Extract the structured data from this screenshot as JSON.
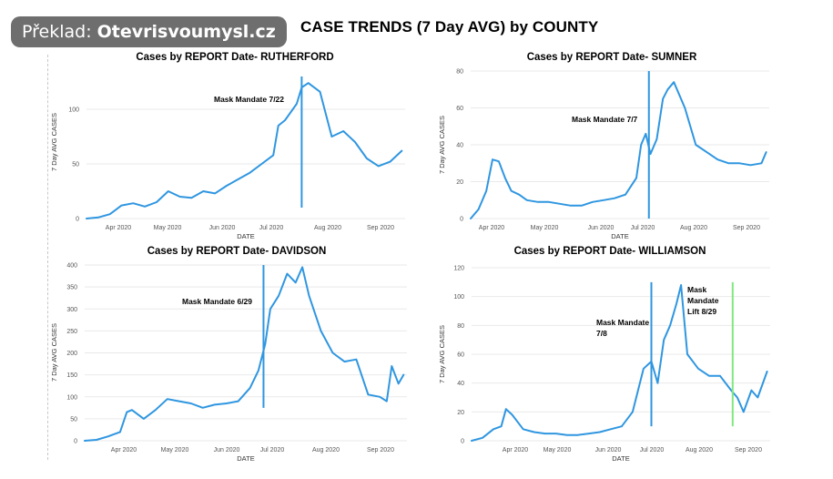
{
  "badge": {
    "prefix": "Překlad:",
    "site": "Otevrisvoumysl.cz"
  },
  "title": "CASE TRENDS (7 Day AVG) by COUNTY",
  "colors": {
    "line": "#2f96e0",
    "green": "#7fe87f"
  },
  "chart_data": [
    {
      "type": "line",
      "title": "Cases by REPORT Date- RUTHERFORD",
      "xlabel": "DATE",
      "ylabel": "7 Day AVG CASES",
      "ylim": [
        0,
        140
      ],
      "yticks": [
        0,
        50,
        100
      ],
      "xticks": [
        "Apr 2020",
        "May 2020",
        "Jun 2020",
        "Jul 2020",
        "Aug 2020",
        "Sep 2020"
      ],
      "xrange": [
        "2020-03-15",
        "2020-09-22"
      ],
      "annotations": [
        {
          "label_lines": [
            "Mask Mandate 7/22"
          ],
          "date": "2020-07-22",
          "line_ylim": [
            10,
            130
          ],
          "color": "#2f96e0"
        }
      ],
      "series": [
        {
          "x": [
            "2020-03-15",
            "2020-03-22",
            "2020-03-29",
            "2020-04-05",
            "2020-04-12",
            "2020-04-19",
            "2020-04-26",
            "2020-05-03",
            "2020-05-10",
            "2020-05-17",
            "2020-05-24",
            "2020-05-31",
            "2020-06-07",
            "2020-06-14",
            "2020-06-21",
            "2020-06-28",
            "2020-07-05",
            "2020-07-08",
            "2020-07-12",
            "2020-07-19",
            "2020-07-22",
            "2020-07-26",
            "2020-08-02",
            "2020-08-09",
            "2020-08-16",
            "2020-08-23",
            "2020-08-30",
            "2020-09-06",
            "2020-09-13",
            "2020-09-20"
          ],
          "values": [
            0,
            1,
            4,
            12,
            14,
            11,
            15,
            25,
            20,
            19,
            25,
            23,
            30,
            36,
            42,
            50,
            58,
            85,
            90,
            105,
            120,
            124,
            116,
            75,
            80,
            70,
            55,
            48,
            52,
            62
          ]
        }
      ]
    },
    {
      "type": "line",
      "title": "Cases by REPORT Date- SUMNER",
      "xlabel": "DATE",
      "ylabel": "7 Day AVG CASES",
      "ylim": [
        0,
        80
      ],
      "yticks": [
        0,
        20,
        40,
        60,
        80
      ],
      "xticks": [
        "Apr 2020",
        "May 2020",
        "Jun 2020",
        "Jul 2020",
        "Aug 2020",
        "Sep 2020"
      ],
      "xrange": [
        "2020-03-15",
        "2020-09-22"
      ],
      "annotations": [
        {
          "label_lines": [
            "Mask Mandate 7/7"
          ],
          "date": "2020-07-07",
          "line_ylim": [
            0,
            80
          ],
          "color": "#2f96e0"
        }
      ],
      "series": [
        {
          "x": [
            "2020-03-15",
            "2020-03-20",
            "2020-03-25",
            "2020-03-29",
            "2020-04-02",
            "2020-04-06",
            "2020-04-10",
            "2020-04-15",
            "2020-04-20",
            "2020-04-27",
            "2020-05-04",
            "2020-05-11",
            "2020-05-18",
            "2020-05-25",
            "2020-06-01",
            "2020-06-08",
            "2020-06-15",
            "2020-06-22",
            "2020-06-29",
            "2020-07-02",
            "2020-07-05",
            "2020-07-08",
            "2020-07-12",
            "2020-07-16",
            "2020-07-19",
            "2020-07-23",
            "2020-07-30",
            "2020-08-06",
            "2020-08-13",
            "2020-08-20",
            "2020-08-27",
            "2020-09-03",
            "2020-09-10",
            "2020-09-17",
            "2020-09-20"
          ],
          "values": [
            0,
            5,
            15,
            32,
            31,
            22,
            15,
            13,
            10,
            9,
            9,
            8,
            7,
            7,
            9,
            10,
            11,
            13,
            22,
            40,
            46,
            35,
            43,
            65,
            70,
            74,
            60,
            40,
            36,
            32,
            30,
            30,
            29,
            30,
            36
          ]
        }
      ]
    },
    {
      "type": "line",
      "title": "Cases by REPORT Date- DAVIDSON",
      "xlabel": "DATE",
      "ylabel": "7 Day AVG CASES",
      "ylim": [
        0,
        400
      ],
      "yticks": [
        0,
        50,
        100,
        150,
        200,
        250,
        300,
        350,
        400
      ],
      "xticks": [
        "Apr 2020",
        "May 2020",
        "Jun 2020",
        "Jul 2020",
        "Aug 2020",
        "Sep 2020"
      ],
      "xrange": [
        "2020-03-15",
        "2020-09-22"
      ],
      "annotations": [
        {
          "label_lines": [
            "Mask Mandate 6/29"
          ],
          "date": "2020-06-29",
          "line_ylim": [
            75,
            400
          ],
          "color": "#2f96e0"
        }
      ],
      "series": [
        {
          "x": [
            "2020-03-15",
            "2020-03-22",
            "2020-03-29",
            "2020-04-05",
            "2020-04-09",
            "2020-04-12",
            "2020-04-19",
            "2020-04-26",
            "2020-05-03",
            "2020-05-10",
            "2020-05-17",
            "2020-05-24",
            "2020-05-31",
            "2020-06-07",
            "2020-06-14",
            "2020-06-21",
            "2020-06-26",
            "2020-06-30",
            "2020-07-03",
            "2020-07-08",
            "2020-07-13",
            "2020-07-18",
            "2020-07-22",
            "2020-07-26",
            "2020-08-02",
            "2020-08-09",
            "2020-08-16",
            "2020-08-23",
            "2020-08-30",
            "2020-09-06",
            "2020-09-10",
            "2020-09-13",
            "2020-09-17",
            "2020-09-20"
          ],
          "values": [
            0,
            2,
            10,
            20,
            65,
            70,
            50,
            70,
            95,
            90,
            85,
            75,
            82,
            85,
            90,
            120,
            160,
            220,
            300,
            330,
            380,
            360,
            395,
            330,
            250,
            200,
            180,
            185,
            105,
            100,
            90,
            170,
            130,
            150
          ]
        }
      ]
    },
    {
      "type": "line",
      "title": "Cases by REPORT Date- WILLIAMSON",
      "xlabel": "DATE",
      "ylabel": "7 Day AVG CASES",
      "ylim": [
        0,
        120
      ],
      "yticks": [
        0,
        20,
        40,
        60,
        80,
        100,
        120
      ],
      "xticks": [
        "Apr 2020",
        "May 2020",
        "Jun 2020",
        "Jul 2020",
        "Aug 2020",
        "Sep 2020"
      ],
      "xrange": [
        "2020-03-15",
        "2020-09-22"
      ],
      "annotations": [
        {
          "label_lines": [
            "Mask Mandate",
            "7/8"
          ],
          "date": "2020-07-08",
          "line_ylim": [
            10,
            110
          ],
          "color": "#2f96e0"
        },
        {
          "label_lines": [
            "Mask",
            "Mandate",
            "Lift 8/29"
          ],
          "date": "2020-08-29",
          "line_ylim": [
            10,
            110
          ],
          "color": "#7fe87f"
        }
      ],
      "series": [
        {
          "x": [
            "2020-03-15",
            "2020-03-22",
            "2020-03-29",
            "2020-04-03",
            "2020-04-06",
            "2020-04-10",
            "2020-04-17",
            "2020-04-24",
            "2020-05-01",
            "2020-05-08",
            "2020-05-15",
            "2020-05-22",
            "2020-05-29",
            "2020-06-05",
            "2020-06-12",
            "2020-06-19",
            "2020-06-26",
            "2020-07-03",
            "2020-07-08",
            "2020-07-12",
            "2020-07-16",
            "2020-07-20",
            "2020-07-24",
            "2020-07-27",
            "2020-07-31",
            "2020-08-07",
            "2020-08-14",
            "2020-08-21",
            "2020-08-28",
            "2020-09-01",
            "2020-09-05",
            "2020-09-10",
            "2020-09-14",
            "2020-09-20"
          ],
          "values": [
            0,
            2,
            8,
            10,
            22,
            18,
            8,
            6,
            5,
            5,
            4,
            4,
            5,
            6,
            8,
            10,
            20,
            50,
            55,
            40,
            70,
            80,
            95,
            108,
            60,
            50,
            45,
            45,
            35,
            30,
            20,
            35,
            30,
            48
          ]
        }
      ]
    }
  ]
}
